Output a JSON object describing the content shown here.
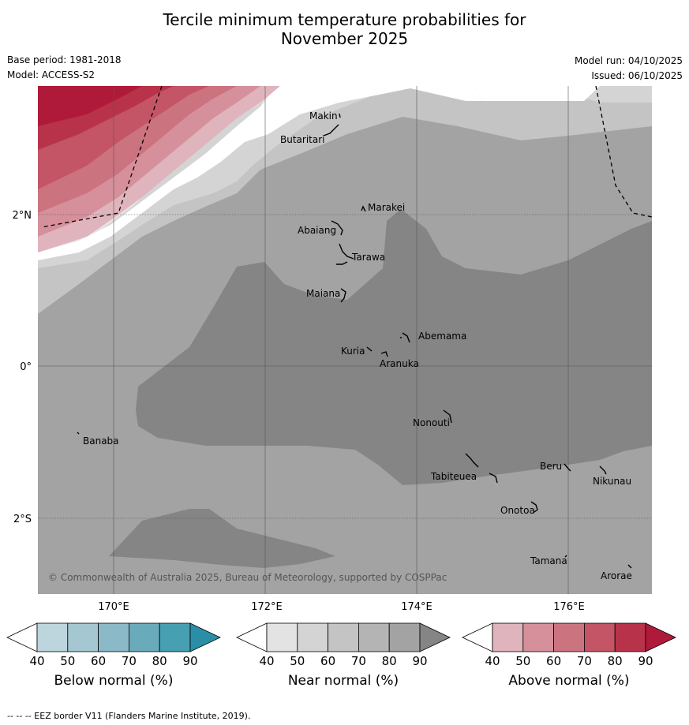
{
  "title_line1": "Tercile minimum temperature probabilities for",
  "title_line2": "November 2025",
  "base_period": "Base period: 1981-2018",
  "model": "Model: ACCESS-S2",
  "model_run": "Model run: 04/10/2025",
  "issued": "Issued: 06/10/2025",
  "axis": {
    "lon_labels": [
      "170°E",
      "172°E",
      "174°E",
      "176°E"
    ],
    "lat_labels": [
      "2°N",
      "0°",
      "2°S"
    ]
  },
  "places": [
    "Makin",
    "Butaritari",
    "Marakei",
    "Abaiang",
    "Tarawa",
    "Maiana",
    "Abemama",
    "Kuria",
    "Aranuka",
    "Banaba",
    "Nonouti",
    "Beru",
    "Tabiteuea",
    "Nikunau",
    "Onotoa",
    "Tamana",
    "Arorae"
  ],
  "copyright": "© Commonwealth of Australia 2025, Bureau of Meteorology, supported by COSPPac",
  "colorbars": [
    {
      "label": "Below normal (%)",
      "ticks": [
        "40",
        "50",
        "60",
        "70",
        "80",
        "90"
      ],
      "colors": [
        "#ffffff",
        "#bdd5dd",
        "#a4c7d1",
        "#8bb9c7",
        "#6aabbb",
        "#47a0b1",
        "#2a8fa6"
      ]
    },
    {
      "label": "Near normal (%)",
      "ticks": [
        "40",
        "50",
        "60",
        "70",
        "80",
        "90"
      ],
      "colors": [
        "#ffffff",
        "#e3e3e3",
        "#d4d4d4",
        "#c4c4c4",
        "#b4b4b4",
        "#a3a3a3",
        "#858585"
      ]
    },
    {
      "label": "Above normal (%)",
      "ticks": [
        "40",
        "50",
        "60",
        "70",
        "80",
        "90"
      ],
      "colors": [
        "#ffffff",
        "#e0b4bd",
        "#d5909b",
        "#cc7380",
        "#c35566",
        "#b8334a",
        "#b01a3a"
      ]
    }
  ],
  "footnote": "--  --  -- EEZ border V11 (Flanders Marine Institute, 2019)."
}
